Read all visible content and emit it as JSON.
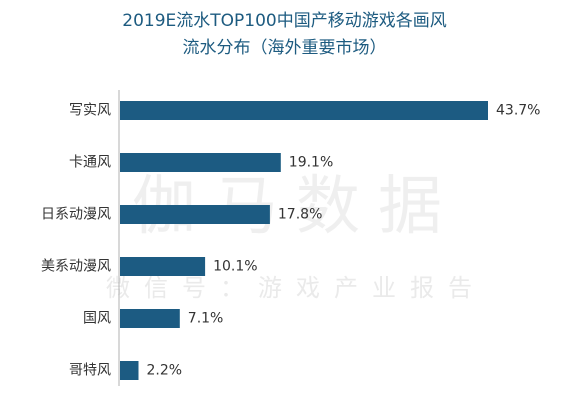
{
  "watermark": {
    "main": "伽马数据",
    "sub": "微信号：游戏产业报告"
  },
  "chart_data": {
    "type": "bar",
    "orientation": "horizontal",
    "title_line1": "2019E流水TOP100中国产移动游戏各画风",
    "title_line2": "流水分布（海外重要市场）",
    "categories": [
      "写实风",
      "卡通风",
      "日系动漫风",
      "美系动漫风",
      "国风",
      "哥特风"
    ],
    "values": [
      43.7,
      19.1,
      17.8,
      10.1,
      7.1,
      2.2
    ],
    "value_labels": [
      "43.7%",
      "19.1%",
      "17.8%",
      "10.1%",
      "7.1%",
      "2.2%"
    ],
    "unit": "%",
    "xlim": [
      0,
      45
    ],
    "bar_color": "#1c5b82",
    "axis_color": "#b0b0b0",
    "grid": false,
    "legend": "none"
  }
}
